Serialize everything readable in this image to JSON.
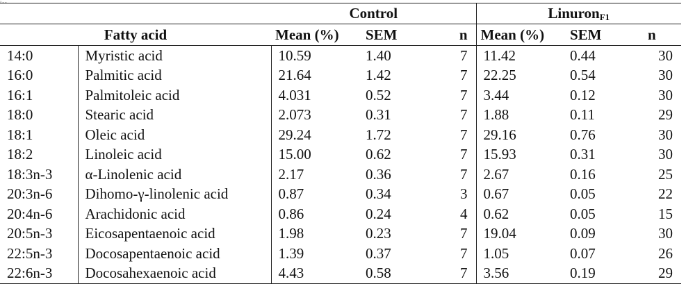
{
  "header": {
    "group_control": "Control",
    "group_linuron": "Linuron",
    "group_linuron_sub": "F1",
    "col_fatty_acid": "Fatty acid",
    "col_mean": "Mean (%)",
    "col_sem": "SEM",
    "col_n": "n"
  },
  "rows": [
    {
      "code": "14:0",
      "name": "Myristic acid",
      "c_mean": "10.59",
      "c_sem": "1.40",
      "c_n": "7",
      "l_mean": "11.42",
      "l_sem": "0.44",
      "l_n": "30"
    },
    {
      "code": "16:0",
      "name": "Palmitic acid",
      "c_mean": "21.64",
      "c_sem": "1.42",
      "c_n": "7",
      "l_mean": "22.25",
      "l_sem": "0.54",
      "l_n": "30"
    },
    {
      "code": "16:1",
      "name": "Palmitoleic acid",
      "c_mean": "4.031",
      "c_sem": "0.52",
      "c_n": "7",
      "l_mean": "3.44",
      "l_sem": "0.12",
      "l_n": "30"
    },
    {
      "code": "18:0",
      "name": "Stearic acid",
      "c_mean": "2.073",
      "c_sem": "0.31",
      "c_n": "7",
      "l_mean": "1.88",
      "l_sem": "0.11",
      "l_n": "29"
    },
    {
      "code": "18:1",
      "name": "Oleic acid",
      "c_mean": "29.24",
      "c_sem": "1.72",
      "c_n": "7",
      "l_mean": "29.16",
      "l_sem": "0.76",
      "l_n": "30"
    },
    {
      "code": "18:2",
      "name": "Linoleic acid",
      "c_mean": "15.00",
      "c_sem": "0.62",
      "c_n": "7",
      "l_mean": "15.93",
      "l_sem": "0.31",
      "l_n": "30"
    },
    {
      "code": "18:3n-3",
      "name": "α-Linolenic acid",
      "c_mean": "2.17",
      "c_sem": "0.36",
      "c_n": "7",
      "l_mean": "2.67",
      "l_sem": "0.16",
      "l_n": "25"
    },
    {
      "code": "20:3n-6",
      "name": "Dihomo-γ-linolenic acid",
      "c_mean": "0.87",
      "c_sem": "0.34",
      "c_n": "3",
      "l_mean": "0.67",
      "l_sem": "0.05",
      "l_n": "22"
    },
    {
      "code": "20:4n-6",
      "name": "Arachidonic acid",
      "c_mean": "0.86",
      "c_sem": "0.24",
      "c_n": "4",
      "l_mean": "0.62",
      "l_sem": "0.05",
      "l_n": "15"
    },
    {
      "code": "20:5n-3",
      "name": "Eicosapentaenoic acid",
      "c_mean": "1.98",
      "c_sem": "0.23",
      "c_n": "7",
      "l_mean": "19.04",
      "l_sem": "0.09",
      "l_n": "30"
    },
    {
      "code": "22:5n-3",
      "name": "Docosapentaenoic acid",
      "c_mean": "1.39",
      "c_sem": "0.37",
      "c_n": "7",
      "l_mean": "1.05",
      "l_sem": "0.07",
      "l_n": "26"
    },
    {
      "code": "22:6n-3",
      "name": "Docosahexaenoic acid",
      "c_mean": "4.43",
      "c_sem": "0.58",
      "c_n": "7",
      "l_mean": "3.56",
      "l_sem": "0.19",
      "l_n": "29"
    }
  ]
}
